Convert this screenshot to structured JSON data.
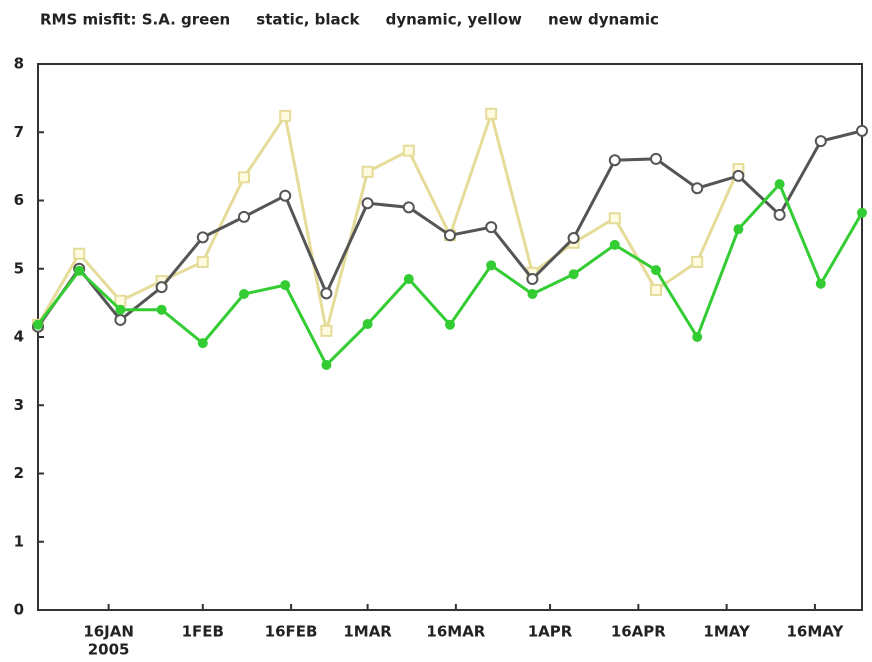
{
  "chart_data": {
    "type": "line",
    "title": "RMS misfit: S.A. green     static, black     dynamic, yellow     new dynamic",
    "x": [
      4,
      11,
      18,
      25,
      32,
      39,
      46,
      53,
      60,
      67,
      74,
      81,
      88,
      95,
      102,
      109,
      116,
      123,
      130,
      137,
      144
    ],
    "xlim": [
      4,
      144
    ],
    "xticks": [
      {
        "value": 16,
        "label": "16JAN"
      },
      {
        "value": 32,
        "label": "1FEB"
      },
      {
        "value": 47,
        "label": "16FEB"
      },
      {
        "value": 60,
        "label": "1MAR"
      },
      {
        "value": 75,
        "label": "16MAR"
      },
      {
        "value": 91,
        "label": "1APR"
      },
      {
        "value": 106,
        "label": "16APR"
      },
      {
        "value": 121,
        "label": "1MAY"
      },
      {
        "value": 136,
        "label": "16MAY"
      }
    ],
    "x_year_label": "2005",
    "ylim": [
      0,
      8
    ],
    "yticks": [
      0,
      1,
      2,
      3,
      4,
      5,
      6,
      7,
      8
    ],
    "series": [
      {
        "color": "#e6dc9a",
        "marker": "square",
        "values": [
          4.18,
          5.22,
          4.53,
          4.82,
          5.1,
          6.34,
          7.24,
          4.09,
          6.42,
          6.73,
          5.49,
          7.27,
          4.94,
          5.38,
          5.74,
          4.69,
          5.1,
          6.46,
          null,
          null,
          null
        ]
      },
      {
        "color": "#555555",
        "marker": "open-circle",
        "values": [
          4.15,
          5.0,
          4.25,
          4.73,
          5.46,
          5.76,
          6.07,
          4.64,
          5.96,
          5.9,
          5.49,
          5.61,
          4.85,
          5.45,
          6.59,
          6.61,
          6.18,
          6.36,
          5.79,
          6.87,
          7.02
        ]
      },
      {
        "color": "#33cc33",
        "marker": "dot",
        "values": [
          4.18,
          4.97,
          4.4,
          4.4,
          3.91,
          4.63,
          4.76,
          3.59,
          4.19,
          4.85,
          4.18,
          5.05,
          4.63,
          4.92,
          5.35,
          4.98,
          4.0,
          5.58,
          6.24,
          4.78,
          5.82
        ]
      }
    ]
  }
}
